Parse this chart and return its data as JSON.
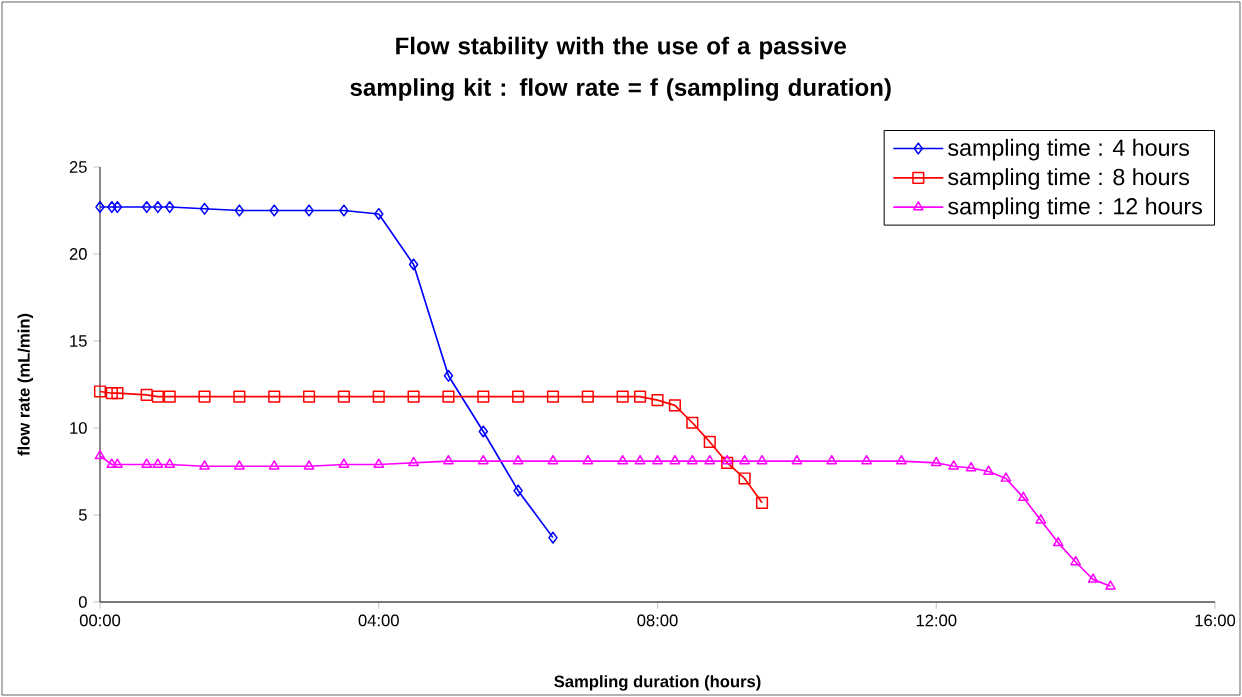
{
  "chart_data": {
    "type": "line",
    "title": "Flow stability with the use of a passive sampling kit : flow rate = f (sampling duration)",
    "xlabel": "Sampling duration (hours)",
    "ylabel": "flow rate (mL/min)",
    "xlim": [
      0,
      16
    ],
    "xticks": [
      {
        "value": 0,
        "label": "00:00"
      },
      {
        "value": 4,
        "label": "04:00"
      },
      {
        "value": 8,
        "label": "08:00"
      },
      {
        "value": 12,
        "label": "12:00"
      },
      {
        "value": 16,
        "label": "16:00"
      }
    ],
    "ylim": [
      0,
      25
    ],
    "yticks": [
      0,
      5,
      10,
      15,
      20,
      25
    ],
    "grid": false,
    "legend": "top right",
    "series": [
      {
        "name": "sampling time : 4 hours",
        "color": "#0000ff",
        "marker": "diamond",
        "line_style": "solid",
        "x": [
          0,
          0.17,
          0.25,
          0.67,
          0.83,
          1,
          1.5,
          2,
          2.5,
          3,
          3.5,
          4,
          4.5,
          5,
          5.5,
          6,
          6.5
        ],
        "values": [
          22.7,
          22.7,
          22.7,
          22.7,
          22.7,
          22.7,
          22.6,
          22.5,
          22.5,
          22.5,
          22.5,
          22.3,
          19.4,
          13.0,
          9.8,
          6.4,
          3.7
        ]
      },
      {
        "name": "sampling time : 8 hours",
        "color": "#ff0000",
        "marker": "square",
        "line_style": "solid",
        "x": [
          0,
          0.17,
          0.25,
          0.67,
          0.83,
          1,
          1.5,
          2,
          2.5,
          3,
          3.5,
          4,
          4.5,
          5,
          5.5,
          6,
          6.5,
          7,
          7.5,
          7.75,
          8,
          8.25,
          8.5,
          8.75,
          9,
          9.25,
          9.5
        ],
        "values": [
          12.1,
          12.0,
          12.0,
          11.9,
          11.8,
          11.8,
          11.8,
          11.8,
          11.8,
          11.8,
          11.8,
          11.8,
          11.8,
          11.8,
          11.8,
          11.8,
          11.8,
          11.8,
          11.8,
          11.8,
          11.6,
          11.3,
          10.3,
          9.2,
          8.0,
          7.1,
          5.7
        ]
      },
      {
        "name": "sampling time : 12 hours",
        "color": "#ff00ff",
        "marker": "triangle",
        "line_style": "solid",
        "x": [
          0,
          0.17,
          0.25,
          0.67,
          0.83,
          1,
          1.5,
          2,
          2.5,
          3,
          3.5,
          4,
          4.5,
          5,
          5.5,
          6,
          6.5,
          7,
          7.5,
          7.75,
          8,
          8.25,
          8.5,
          8.75,
          9,
          9.25,
          9.5,
          10,
          10.5,
          11,
          11.5,
          12,
          12.25,
          12.5,
          12.75,
          13,
          13.25,
          13.5,
          13.75,
          14,
          14.25,
          14.5
        ],
        "values": [
          8.4,
          7.9,
          7.9,
          7.9,
          7.9,
          7.9,
          7.8,
          7.8,
          7.8,
          7.8,
          7.9,
          7.9,
          8.0,
          8.1,
          8.1,
          8.1,
          8.1,
          8.1,
          8.1,
          8.1,
          8.1,
          8.1,
          8.1,
          8.1,
          8.1,
          8.1,
          8.1,
          8.1,
          8.1,
          8.1,
          8.1,
          8.0,
          7.8,
          7.7,
          7.5,
          7.1,
          6.0,
          4.7,
          3.4,
          2.3,
          1.3,
          0.9
        ]
      }
    ]
  }
}
